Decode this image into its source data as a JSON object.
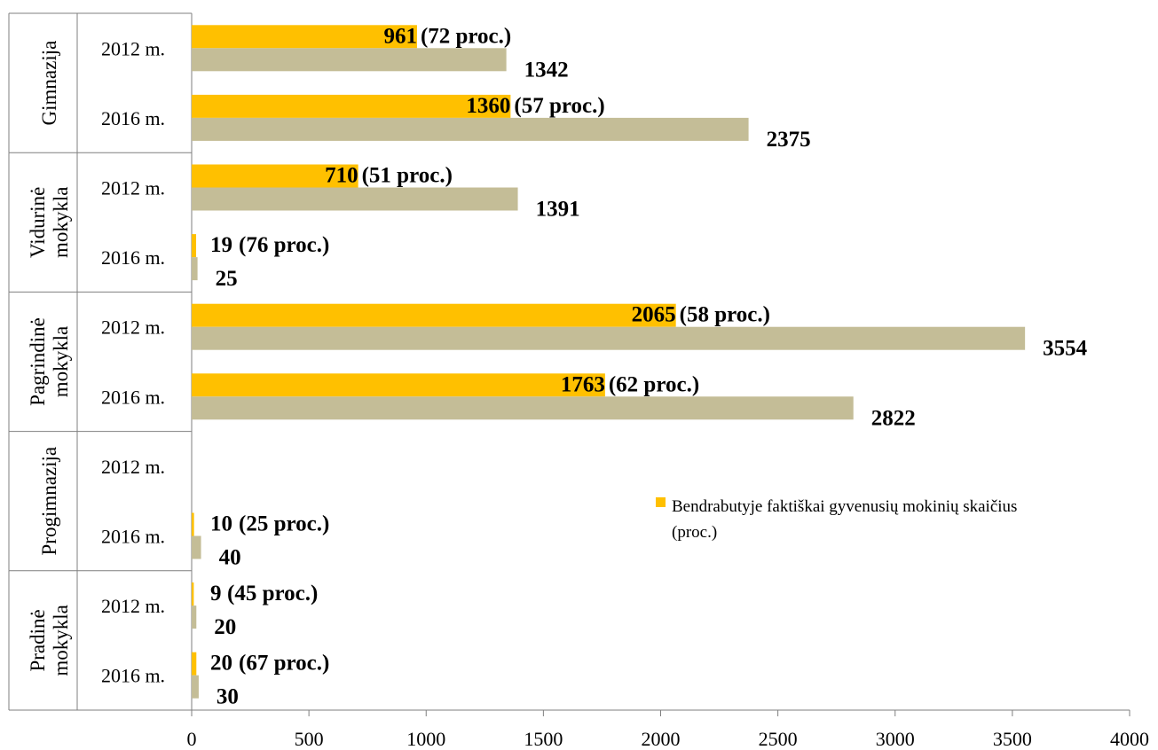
{
  "chart_data": {
    "type": "bar",
    "orientation": "horizontal",
    "xlim": [
      0,
      4000
    ],
    "x_ticks": [
      "0",
      "500",
      "1000",
      "1500",
      "2000",
      "2500",
      "3000",
      "3500",
      "4000"
    ],
    "legend": {
      "position": "right",
      "entries": [
        "Bendrabutyje faktiškai gyvenusių mokinių skaičius (proc.)"
      ]
    },
    "colors": {
      "lived": "#FFC000",
      "total": "#C4BD97",
      "axis": "#7f7f7f"
    },
    "series": [
      {
        "name": "Bendrabutyje faktiškai gyvenusių mokinių skaičius (proc.)",
        "key": "lived"
      },
      {
        "key": "total"
      }
    ],
    "groups": [
      {
        "name_lines": [
          "Gimnazija"
        ],
        "rows": [
          {
            "year": "2012 m.",
            "lived": 961,
            "pct": "(72 proc.)",
            "total": 1342
          },
          {
            "year": "2016 m.",
            "lived": 1360,
            "pct": "(57 proc.)",
            "total": 2375
          }
        ]
      },
      {
        "name_lines": [
          "Vidurinė",
          "mokykla"
        ],
        "rows": [
          {
            "year": "2012 m.",
            "lived": 710,
            "pct": "(51 proc.)",
            "total": 1391
          },
          {
            "year": "2016 m.",
            "lived": 19,
            "pct": "(76 proc.)",
            "total": 25
          }
        ]
      },
      {
        "name_lines": [
          "Pagrindinė",
          "mokykla"
        ],
        "rows": [
          {
            "year": "2012 m.",
            "lived": 2065,
            "pct": "(58 proc.)",
            "total": 3554
          },
          {
            "year": "2016 m.",
            "lived": 1763,
            "pct": "(62 proc.)",
            "total": 2822
          }
        ]
      },
      {
        "name_lines": [
          "Progimnazija"
        ],
        "rows": [
          {
            "year": "2012 m.",
            "lived": null,
            "pct": "",
            "total": null
          },
          {
            "year": "2016 m.",
            "lived": 10,
            "pct": "(25 proc.)",
            "total": 40
          }
        ]
      },
      {
        "name_lines": [
          "Pradinė",
          "mokykla"
        ],
        "rows": [
          {
            "year": "2012 m.",
            "lived": 9,
            "pct": "(45 proc.)",
            "total": 20
          },
          {
            "year": "2016 m.",
            "lived": 20,
            "pct": "(67 proc.)",
            "total": 30
          }
        ]
      }
    ]
  }
}
